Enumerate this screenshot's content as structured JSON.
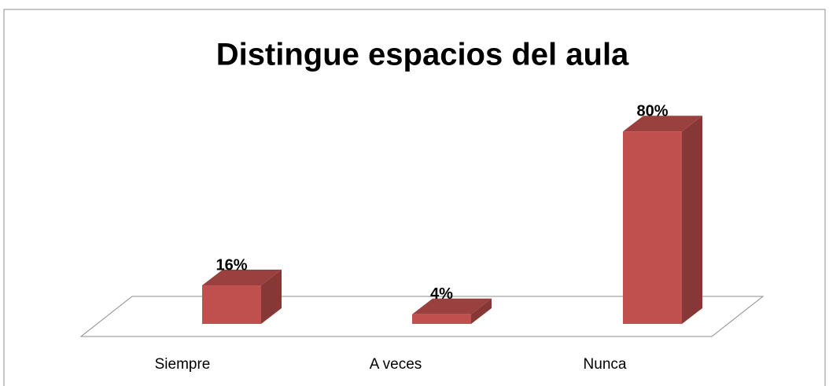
{
  "chart_data": {
    "type": "bar3d",
    "title": "Distingue espacios del aula",
    "categories": [
      "Siempre",
      "A veces",
      "Nunca"
    ],
    "values": [
      16,
      4,
      80
    ],
    "value_labels": [
      "16%",
      "4%",
      "80%"
    ],
    "color": "#c0504d"
  }
}
